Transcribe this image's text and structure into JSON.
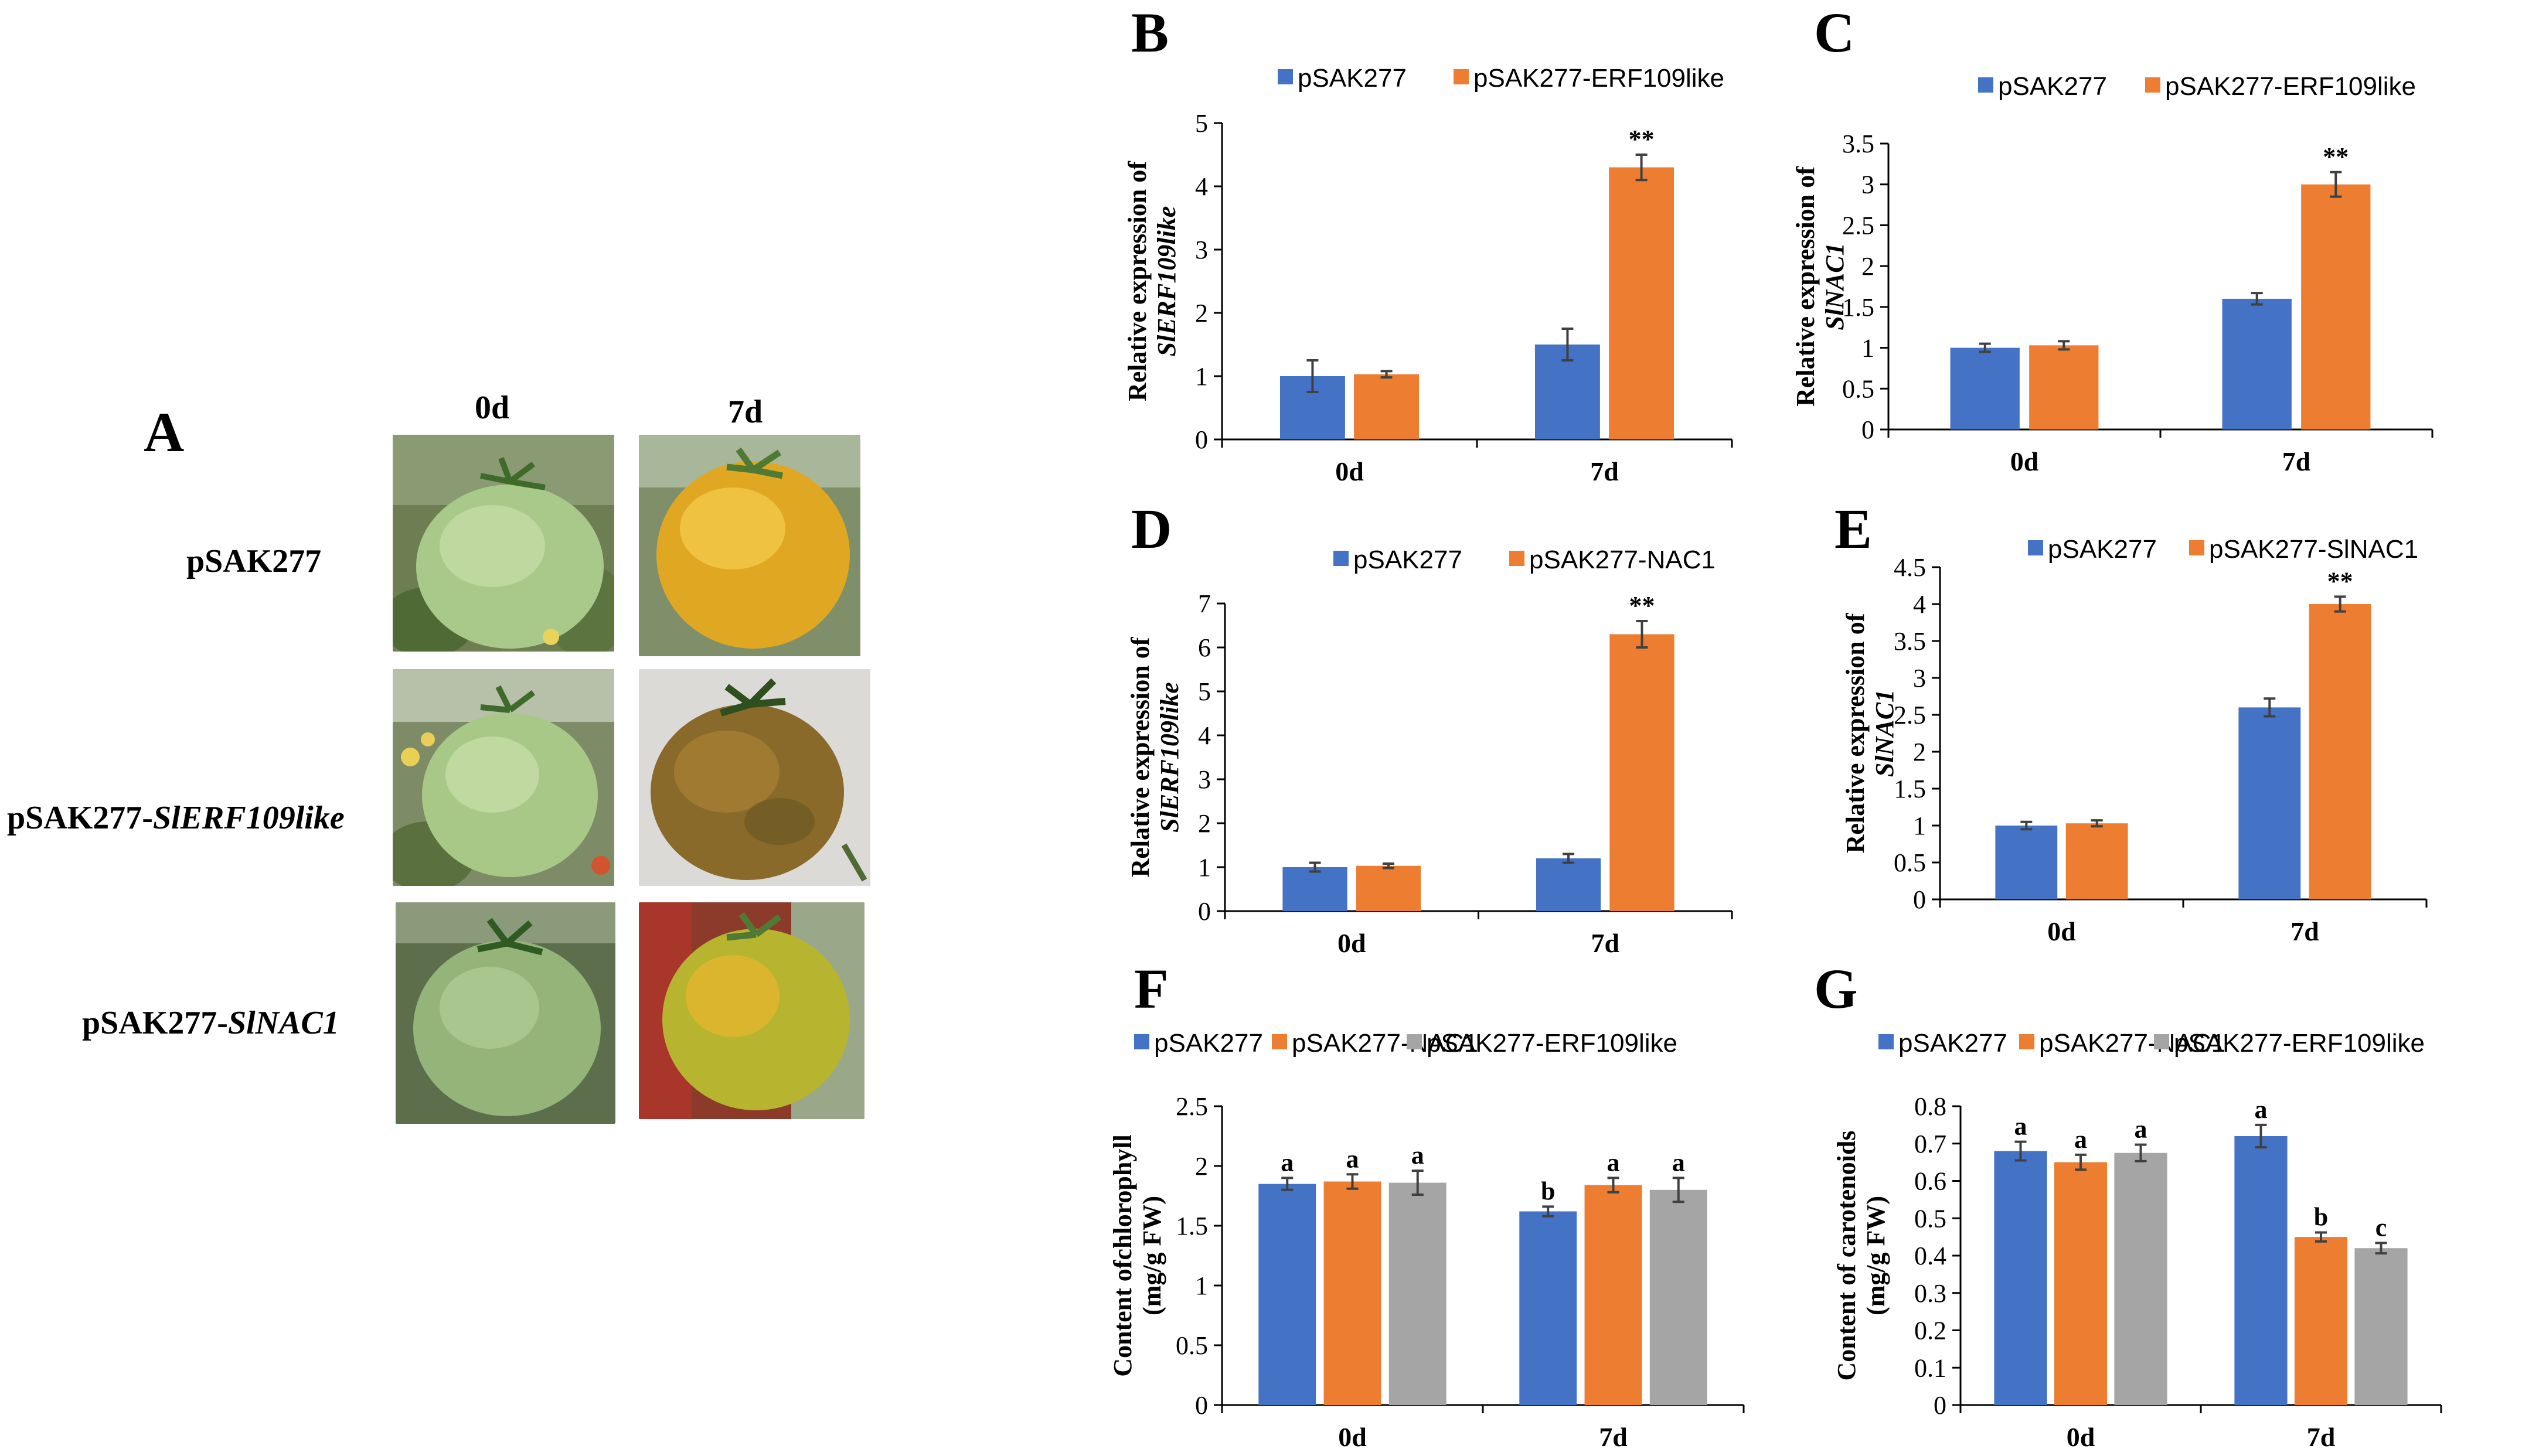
{
  "colors": {
    "blue": "#4472c4",
    "orange": "#ed7d31",
    "gray": "#a5a5a5",
    "errorbar": "#404040"
  },
  "panelA": {
    "letter": "A",
    "columns": [
      "0d",
      "7d"
    ],
    "rows": [
      {
        "prefix": "pSAK277",
        "italic": ""
      },
      {
        "prefix": "pSAK277-",
        "italic": "SlERF109like"
      },
      {
        "prefix": "pSAK277-",
        "italic": "SlNAC1"
      }
    ]
  },
  "chart_data": [
    {
      "panel": "B",
      "type": "bar",
      "categories": [
        "0d",
        "7d"
      ],
      "series": [
        {
          "name": "pSAK277",
          "color": "blue",
          "values": [
            1.0,
            1.5
          ],
          "errors": [
            0.25,
            0.25
          ],
          "labels": [
            "",
            ""
          ]
        },
        {
          "name": "pSAK277-ERF109like",
          "color": "orange",
          "values": [
            1.03,
            4.3
          ],
          "errors": [
            0.05,
            0.2
          ],
          "labels": [
            "",
            "**"
          ]
        }
      ],
      "ylabel_line1": "Relative expression of",
      "ylabel_line2": "SlERF109like",
      "ylim": [
        0,
        5
      ],
      "yticks": [
        "0",
        "1",
        "2",
        "3",
        "4",
        "5"
      ]
    },
    {
      "panel": "C",
      "type": "bar",
      "categories": [
        "0d",
        "7d"
      ],
      "series": [
        {
          "name": "pSAK277",
          "color": "blue",
          "values": [
            1.0,
            1.6
          ],
          "errors": [
            0.05,
            0.07
          ],
          "labels": [
            "",
            ""
          ]
        },
        {
          "name": "pSAK277-ERF109like",
          "color": "orange",
          "values": [
            1.03,
            3.0
          ],
          "errors": [
            0.05,
            0.15
          ],
          "labels": [
            "",
            "**"
          ]
        }
      ],
      "ylabel_line1": "Relative expression of",
      "ylabel_line2": "SlNAC1",
      "ylim": [
        0,
        3.5
      ],
      "yticks": [
        "0",
        "0.5",
        "1",
        "1.5",
        "2",
        "2.5",
        "3",
        "3.5"
      ]
    },
    {
      "panel": "D",
      "type": "bar",
      "categories": [
        "0d",
        "7d"
      ],
      "series": [
        {
          "name": "pSAK277",
          "color": "blue",
          "values": [
            1.0,
            1.2
          ],
          "errors": [
            0.1,
            0.1
          ],
          "labels": [
            "",
            ""
          ]
        },
        {
          "name": "pSAK277-NAC1",
          "color": "orange",
          "values": [
            1.03,
            6.3
          ],
          "errors": [
            0.05,
            0.3
          ],
          "labels": [
            "",
            "**"
          ]
        }
      ],
      "ylabel_line1": "Relative expression of",
      "ylabel_line2": "SlERF109like",
      "ylim": [
        0,
        7
      ],
      "yticks": [
        "0",
        "1",
        "2",
        "3",
        "4",
        "5",
        "6",
        "7"
      ]
    },
    {
      "panel": "E",
      "type": "bar",
      "categories": [
        "0d",
        "7d"
      ],
      "series": [
        {
          "name": "pSAK277",
          "color": "blue",
          "values": [
            1.0,
            2.6
          ],
          "errors": [
            0.05,
            0.12
          ],
          "labels": [
            "",
            ""
          ]
        },
        {
          "name": "pSAK277-SlNAC1",
          "color": "orange",
          "values": [
            1.03,
            4.0
          ],
          "errors": [
            0.04,
            0.1
          ],
          "labels": [
            "",
            "**"
          ]
        }
      ],
      "ylabel_line1": "Relative expression of",
      "ylabel_line2": "SlNAC1",
      "ylim": [
        0,
        4.5
      ],
      "yticks": [
        "0",
        "0.5",
        "1",
        "1.5",
        "2",
        "2.5",
        "3",
        "3.5",
        "4",
        "4.5"
      ]
    },
    {
      "panel": "F",
      "type": "bar",
      "categories": [
        "0d",
        "7d"
      ],
      "series": [
        {
          "name": "pSAK277",
          "color": "blue",
          "values": [
            1.85,
            1.62
          ],
          "errors": [
            0.05,
            0.04
          ],
          "labels": [
            "a",
            "b"
          ]
        },
        {
          "name": "pSAK277-NAC1",
          "color": "orange",
          "values": [
            1.87,
            1.84
          ],
          "errors": [
            0.06,
            0.06
          ],
          "labels": [
            "a",
            "a"
          ]
        },
        {
          "name": "pSAK277-ERF109like",
          "color": "gray",
          "values": [
            1.86,
            1.8
          ],
          "errors": [
            0.1,
            0.1
          ],
          "labels": [
            "a",
            "a"
          ]
        }
      ],
      "ylabel_line1": "Content ofchlorophyll",
      "ylabel_line2": "(mg/g FW)",
      "ylim": [
        0,
        2.5
      ],
      "yticks": [
        "0",
        "0.5",
        "1",
        "1.5",
        "2",
        "2.5"
      ]
    },
    {
      "panel": "G",
      "type": "bar",
      "categories": [
        "0d",
        "7d"
      ],
      "series": [
        {
          "name": "pSAK277",
          "color": "blue",
          "values": [
            0.68,
            0.72
          ],
          "errors": [
            0.025,
            0.03
          ],
          "labels": [
            "a",
            "a"
          ]
        },
        {
          "name": "pSAK277-NAC1",
          "color": "orange",
          "values": [
            0.65,
            0.45
          ],
          "errors": [
            0.02,
            0.012
          ],
          "labels": [
            "a",
            "b"
          ]
        },
        {
          "name": "pSAK277-ERF109like",
          "color": "gray",
          "values": [
            0.675,
            0.42
          ],
          "errors": [
            0.022,
            0.014
          ],
          "labels": [
            "a",
            "c"
          ]
        }
      ],
      "ylabel_line1": "Content of carotenoids",
      "ylabel_line2": "(mg/g FW)",
      "ylim": [
        0,
        0.8
      ],
      "yticks": [
        "0",
        "0.1",
        "0.2",
        "0.3",
        "0.4",
        "0.5",
        "0.6",
        "0.7",
        "0.8"
      ]
    }
  ]
}
